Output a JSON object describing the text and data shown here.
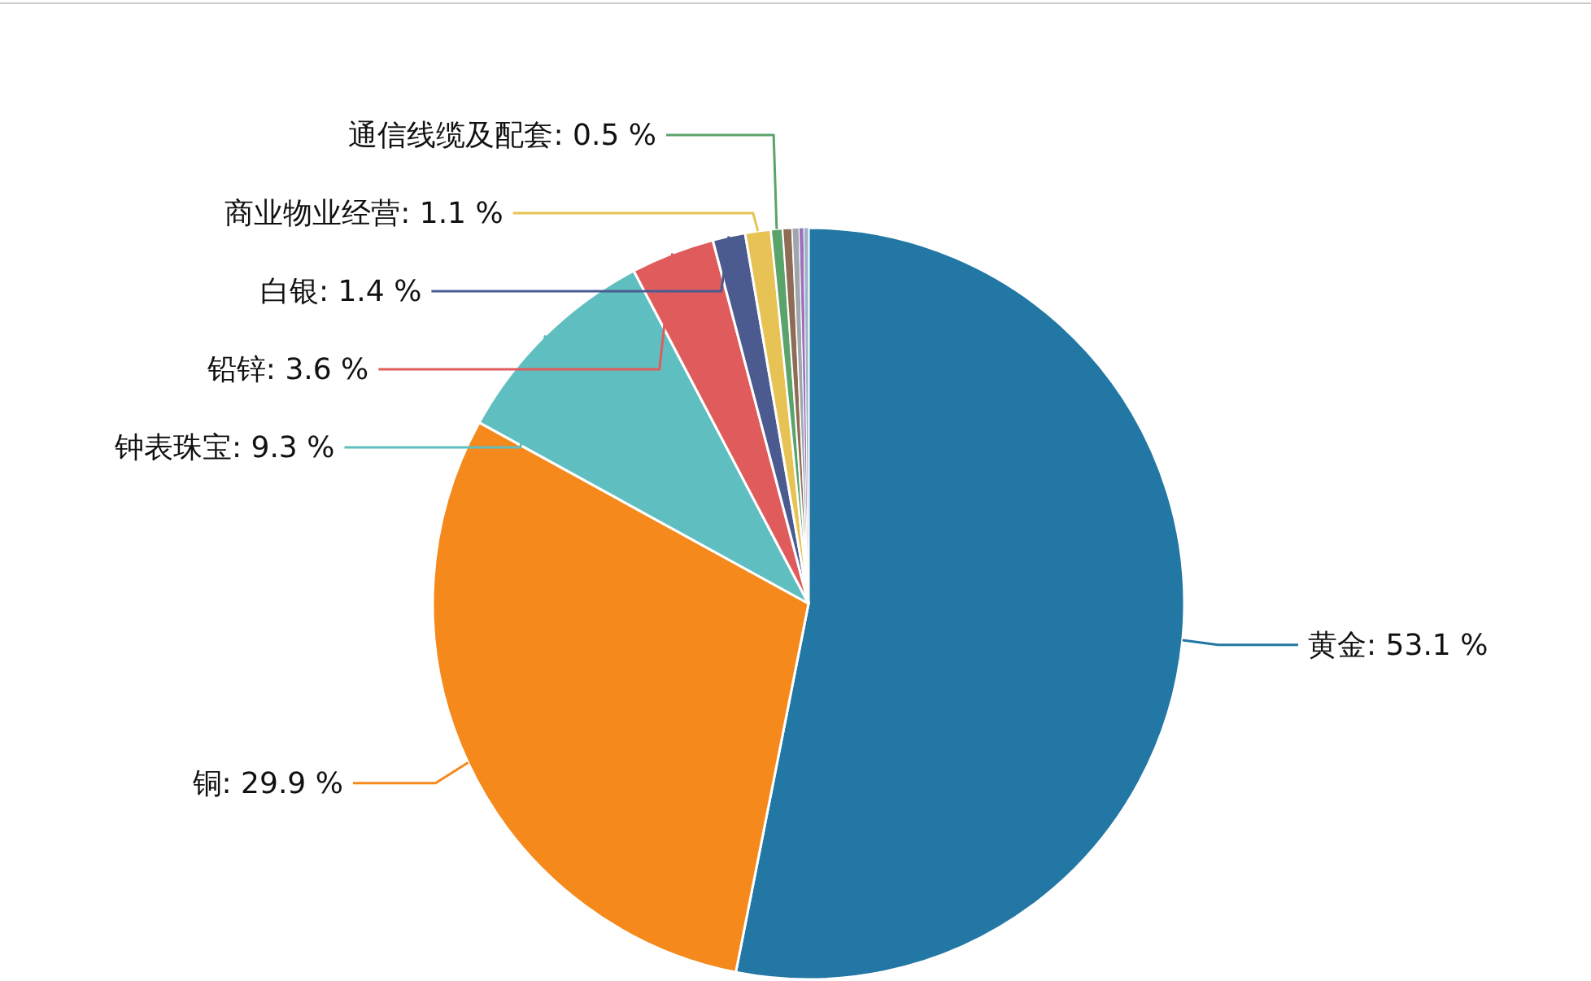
{
  "chart_data": {
    "type": "pie",
    "categories": [
      "黄金",
      "铜",
      "钟表珠宝",
      "铅锌",
      "白银",
      "商业物业经营",
      "通信线缆及配套",
      null,
      null,
      null,
      null
    ],
    "values": [
      53.1,
      29.9,
      9.3,
      3.6,
      1.4,
      1.1,
      0.5,
      0.4,
      0.3,
      0.2,
      0.2
    ],
    "colors": [
      "#2377a4",
      "#f5891b",
      "#5fbfc0",
      "#e05c5c",
      "#4b5a8f",
      "#e6c354",
      "#5aa36b",
      "#8e6c55",
      "#a0a6ad",
      "#9b72b8",
      "#9db3cc"
    ],
    "value_labels": [
      "53.1 %",
      "29.9 %",
      "9.3 %",
      "3.6 %",
      "1.4 %",
      "1.1 %",
      "0.5 %",
      null,
      null,
      null,
      null
    ]
  }
}
